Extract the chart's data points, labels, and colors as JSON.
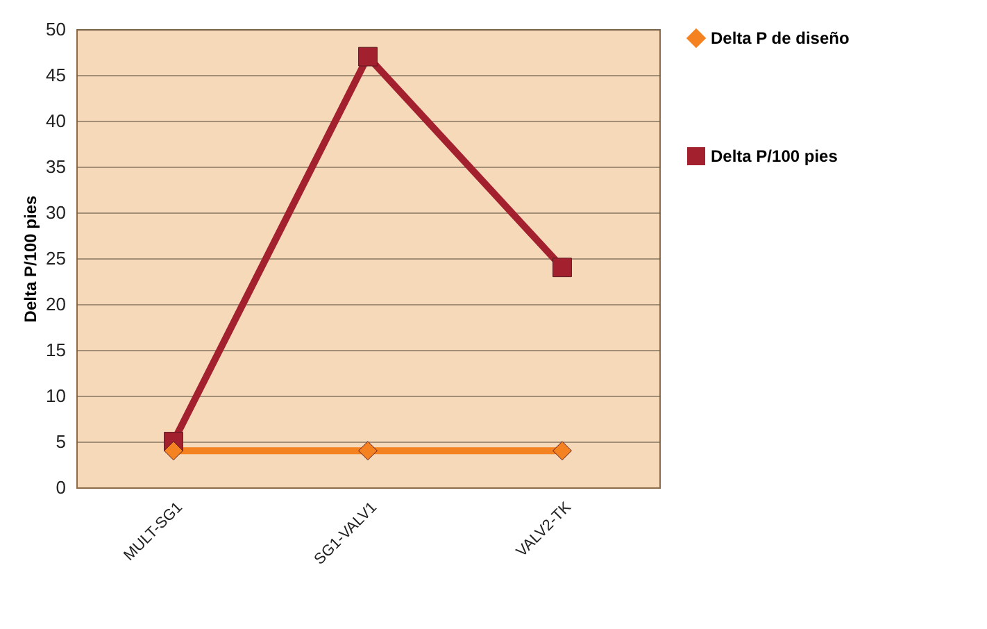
{
  "chart_data": {
    "type": "line",
    "ylabel": "Delta P/100 pies",
    "categories": [
      "MULT-SG1",
      "SG1-VALV1",
      "VALV2-TK"
    ],
    "series": [
      {
        "name": "Delta P de diseño",
        "color": "#f58220",
        "values": [
          4,
          4,
          4
        ],
        "marker": "diamond"
      },
      {
        "name": "Delta P/100 pies",
        "color": "#a3202f",
        "values": [
          5,
          47,
          24
        ],
        "marker": "square"
      }
    ],
    "ylim": [
      0,
      50
    ],
    "yticks": [
      0,
      5,
      10,
      15,
      20,
      25,
      30,
      35,
      40,
      45,
      50
    ],
    "grid": "y",
    "legend": "right"
  }
}
